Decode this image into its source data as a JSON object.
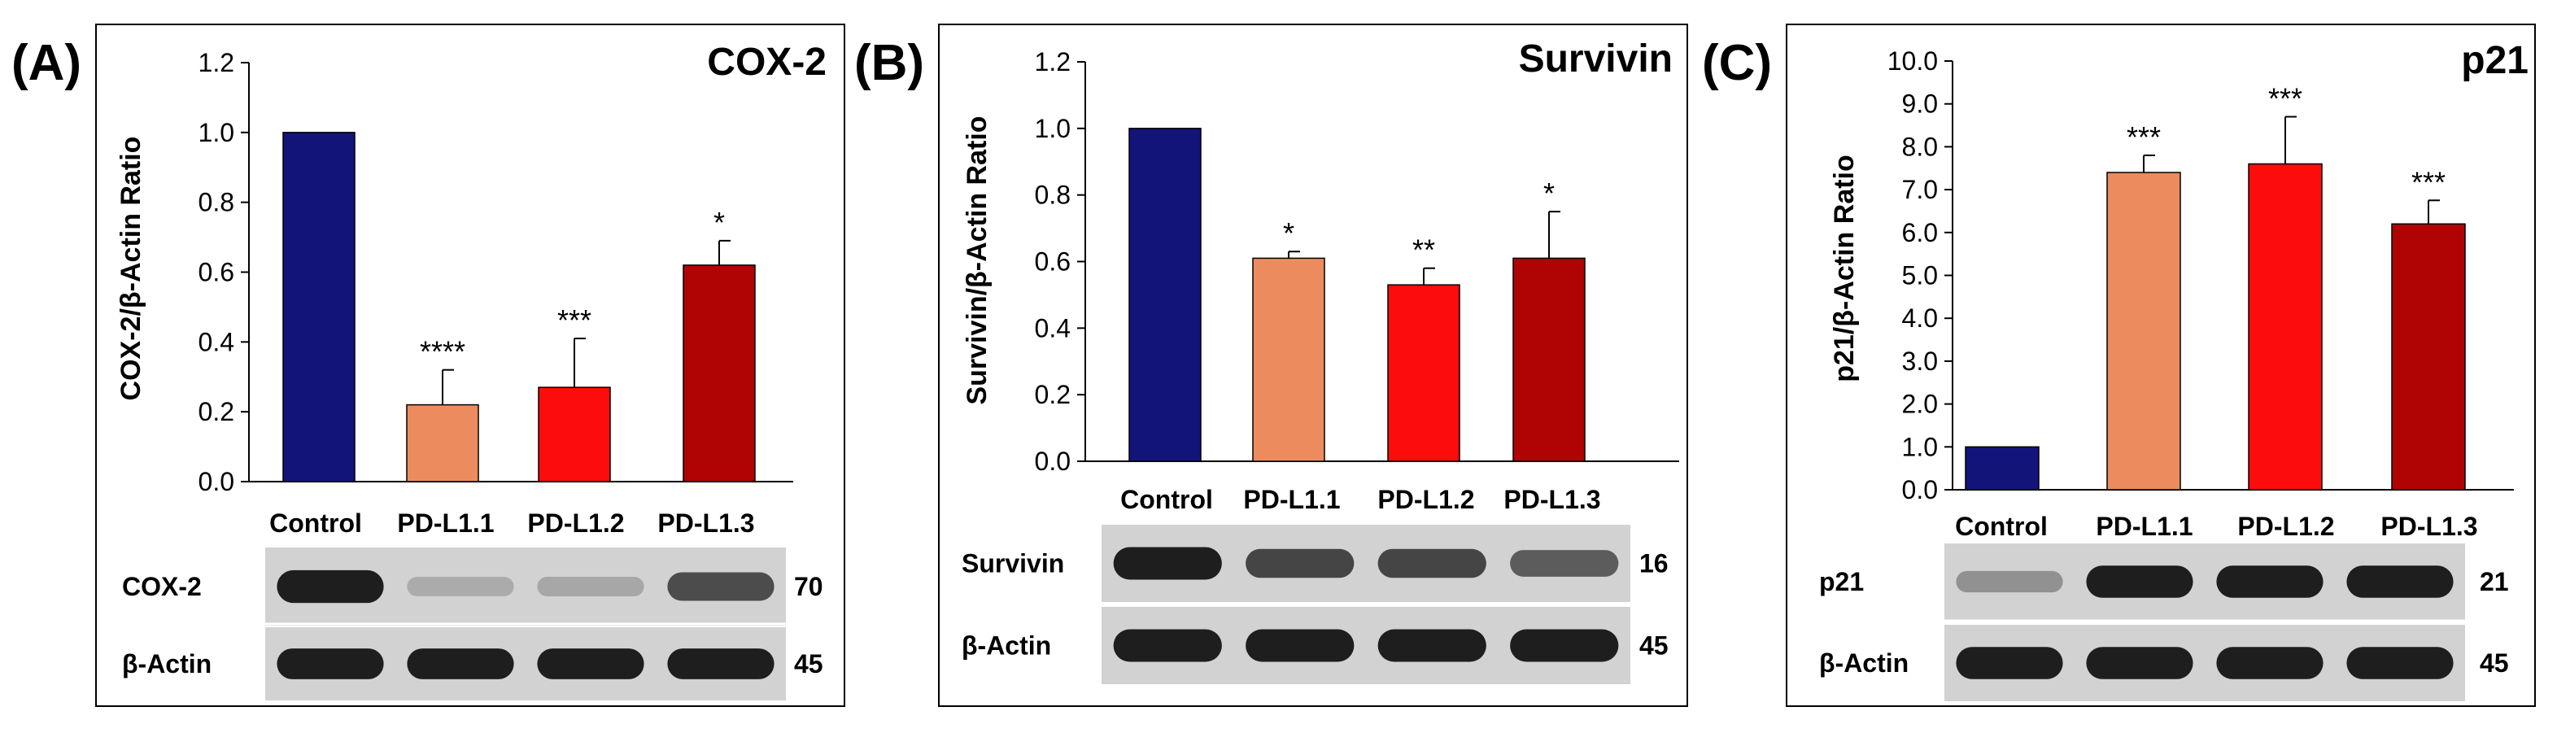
{
  "colors": {
    "control": "#13147a",
    "pd11": "#ec8c5e",
    "pd12": "#fd0c0c",
    "pd13": "#b00304",
    "frame": "#000000",
    "blot_bg": "#d2d2d2",
    "band": "#1e1e1e"
  },
  "blot_bands": {
    "A": {
      "COX-2": [
        1.0,
        0.08,
        0.1,
        0.7
      ],
      "β-Actin": [
        1,
        1,
        1,
        1
      ]
    },
    "B": {
      "Survivin": [
        1.0,
        0.75,
        0.75,
        0.6
      ],
      "β-Actin": [
        1,
        1,
        1,
        1
      ]
    },
    "C": {
      "p21": [
        0.25,
        1,
        1,
        1
      ],
      "β-Actin": [
        1,
        1,
        1,
        1
      ]
    }
  },
  "chart_data": [
    {
      "panel": "(A)",
      "type": "bar",
      "title": "COX-2",
      "xlabel": "",
      "ylabel": "COX-2/β-Actin Ratio",
      "categories": [
        "Control",
        "PD-L1.1",
        "PD-L1.2",
        "PD-L1.3"
      ],
      "values": [
        1.0,
        0.22,
        0.27,
        0.62
      ],
      "errors": [
        0,
        0.1,
        0.14,
        0.07
      ],
      "significance": [
        "",
        "****",
        "***",
        "*"
      ],
      "ylim": [
        0,
        1.2
      ],
      "yticks": [
        "0.0",
        "0.2",
        "0.4",
        "0.6",
        "0.8",
        "1.0",
        "1.2"
      ],
      "blot": {
        "rows": [
          {
            "label": "COX-2",
            "kda": "70"
          },
          {
            "label": "β-Actin",
            "kda": "45"
          }
        ]
      }
    },
    {
      "panel": "(B)",
      "type": "bar",
      "title": "Survivin",
      "xlabel": "",
      "ylabel": "Survivin/β-Actin Ratio",
      "categories": [
        "Control",
        "PD-L1.1",
        "PD-L1.2",
        "PD-L1.3"
      ],
      "values": [
        1.0,
        0.61,
        0.53,
        0.61
      ],
      "errors": [
        0,
        0.02,
        0.05,
        0.14
      ],
      "significance": [
        "",
        "*",
        "**",
        "*"
      ],
      "ylim": [
        0,
        1.2
      ],
      "yticks": [
        "0.0",
        "0.2",
        "0.4",
        "0.6",
        "0.8",
        "1.0",
        "1.2"
      ],
      "blot": {
        "rows": [
          {
            "label": "Survivin",
            "kda": "16"
          },
          {
            "label": "β-Actin",
            "kda": "45"
          }
        ]
      }
    },
    {
      "panel": "(C)",
      "type": "bar",
      "title": "p21",
      "xlabel": "",
      "ylabel": "p21/β-Actin Ratio",
      "categories": [
        "Control",
        "PD-L1.1",
        "PD-L1.2",
        "PD-L1.3"
      ],
      "values": [
        1.0,
        7.4,
        7.6,
        6.2
      ],
      "errors": [
        0,
        0.4,
        1.1,
        0.55
      ],
      "significance": [
        "",
        "***",
        "***",
        "***"
      ],
      "ylim": [
        0,
        10
      ],
      "yticks": [
        "0.0",
        "1.0",
        "2.0",
        "3.0",
        "4.0",
        "5.0",
        "6.0",
        "7.0",
        "8.0",
        "9.0",
        "10.0"
      ],
      "blot": {
        "rows": [
          {
            "label": "p21",
            "kda": "21"
          },
          {
            "label": "β-Actin",
            "kda": "45"
          }
        ]
      }
    }
  ]
}
